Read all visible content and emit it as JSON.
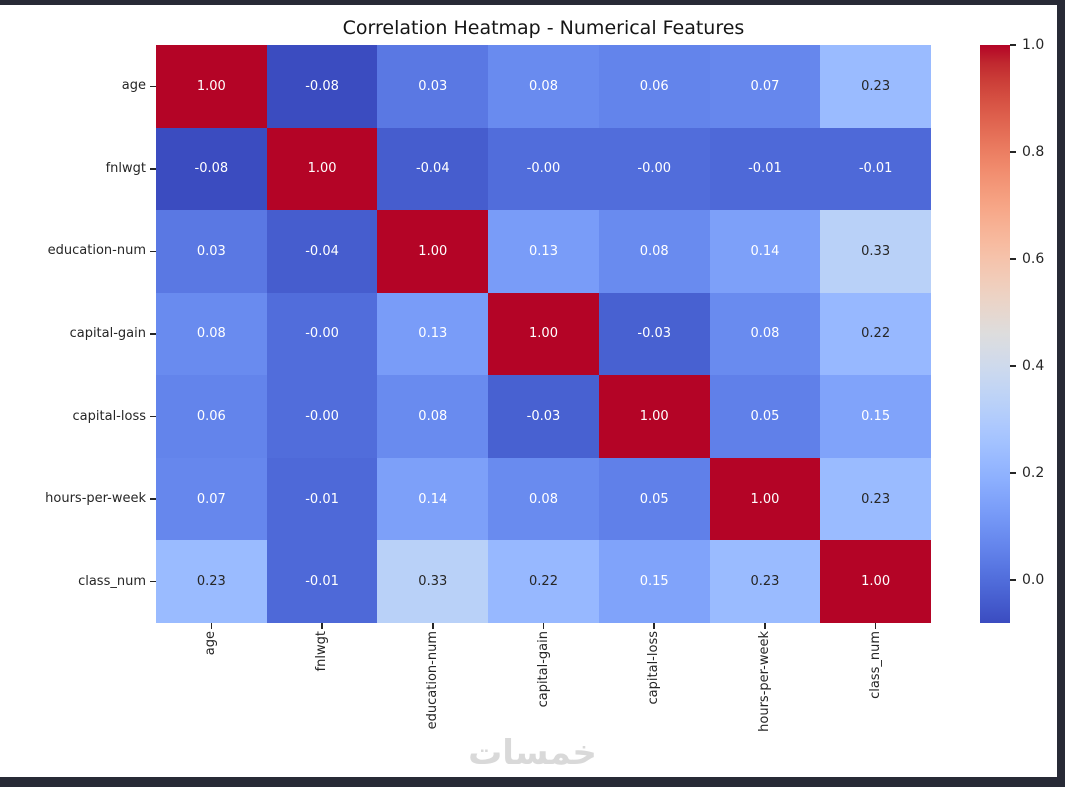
{
  "figure": {
    "watermark": "خمسات"
  },
  "colors": {
    "page_bg": "#282a36",
    "figure_bg": "#ffffff",
    "title_text": "#151515",
    "axis_text": "#262626",
    "annot_dark": "#262626",
    "annot_light": "#ffffff",
    "watermark": "#d9d9d9"
  },
  "chart_data": {
    "type": "heatmap",
    "title": "Correlation Heatmap - Numerical Features",
    "features": [
      "age",
      "fnlwgt",
      "education-num",
      "capital-gain",
      "capital-loss",
      "hours-per-week",
      "class_num"
    ],
    "matrix": [
      [
        1.0,
        -0.08,
        0.03,
        0.08,
        0.06,
        0.07,
        0.23
      ],
      [
        -0.08,
        1.0,
        -0.04,
        -0.0,
        -0.0,
        -0.01,
        -0.01
      ],
      [
        0.03,
        -0.04,
        1.0,
        0.13,
        0.08,
        0.14,
        0.33
      ],
      [
        0.08,
        -0.0,
        0.13,
        1.0,
        -0.03,
        0.08,
        0.22
      ],
      [
        0.06,
        -0.0,
        0.08,
        -0.03,
        1.0,
        0.05,
        0.15
      ],
      [
        0.07,
        -0.01,
        0.14,
        0.08,
        0.05,
        1.0,
        0.23
      ],
      [
        0.23,
        -0.01,
        0.33,
        0.22,
        0.15,
        0.23,
        1.0
      ]
    ],
    "labels": [
      [
        "1.00",
        "-0.08",
        "0.03",
        "0.08",
        "0.06",
        "0.07",
        "0.23"
      ],
      [
        "-0.08",
        "1.00",
        "-0.04",
        "-0.00",
        "-0.00",
        "-0.01",
        "-0.01"
      ],
      [
        "0.03",
        "-0.04",
        "1.00",
        "0.13",
        "0.08",
        "0.14",
        "0.33"
      ],
      [
        "0.08",
        "-0.00",
        "0.13",
        "1.00",
        "-0.03",
        "0.08",
        "0.22"
      ],
      [
        "0.06",
        "-0.00",
        "0.08",
        "-0.03",
        "1.00",
        "0.05",
        "0.15"
      ],
      [
        "0.07",
        "-0.01",
        "0.14",
        "0.08",
        "0.05",
        "1.00",
        "0.23"
      ],
      [
        "0.23",
        "-0.01",
        "0.33",
        "0.22",
        "0.15",
        "0.23",
        "1.00"
      ]
    ],
    "colormap": {
      "name": "coolwarm",
      "vmin": -0.08,
      "vmax": 1.0,
      "anchors": [
        "#3B4CC0",
        "#445ACC",
        "#4D68D7",
        "#5775E1",
        "#6282EA",
        "#6C8EF1",
        "#779AF7",
        "#82A5FB",
        "#8DB0FE",
        "#98B9FF",
        "#A3C2FF",
        "#AEC9FD",
        "#B8D0F9",
        "#C2D5F4",
        "#CCD9EE",
        "#D5DBE6",
        "#DDDDDD",
        "#E5D8D1",
        "#ECD3C5",
        "#F1CCB9",
        "#F5C4AD",
        "#F7BBA0",
        "#F7B194",
        "#F7A687",
        "#F49A7B",
        "#F18D6F",
        "#EC7F63",
        "#E57058",
        "#DE604D",
        "#D55042",
        "#CB3E38",
        "#C0282F",
        "#B40426"
      ]
    },
    "colorbar": {
      "tick_labels": [
        "1.0",
        "0.8",
        "0.6",
        "0.4",
        "0.2",
        "0.0"
      ],
      "tick_values": [
        1.0,
        0.8,
        0.6,
        0.4,
        0.2,
        0.0
      ],
      "position": "right"
    },
    "grid": false,
    "legend": false
  }
}
